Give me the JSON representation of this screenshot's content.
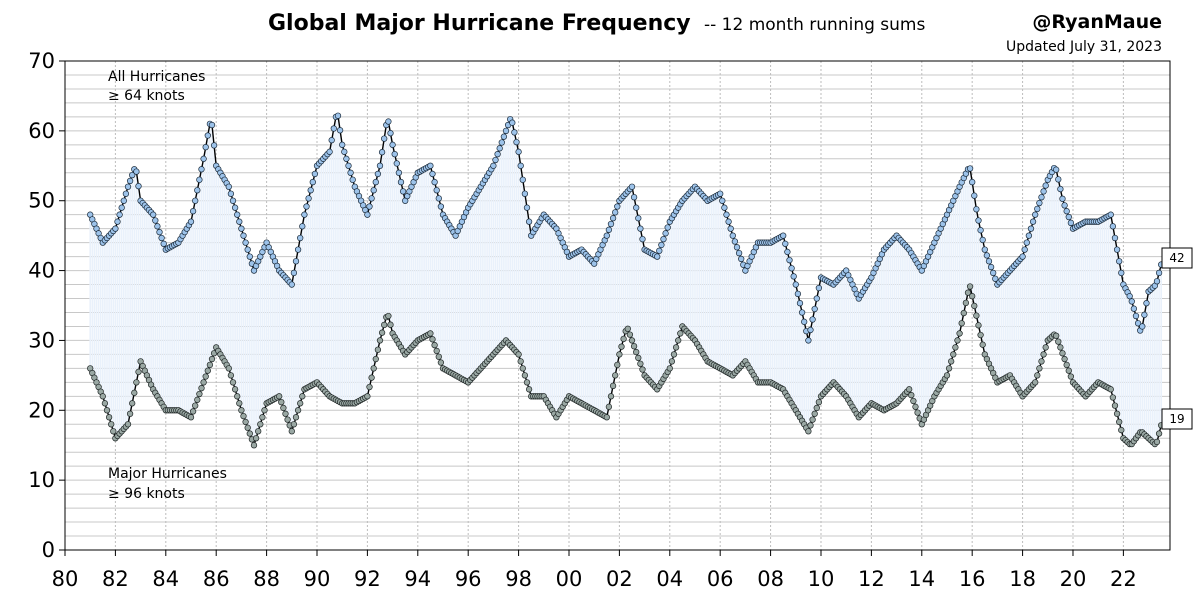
{
  "chart_data": {
    "type": "line",
    "title": "Global Major Hurricane Frequency",
    "subtitle": "-- 12 month running sums",
    "credit": "@RyanMaue",
    "updated": "Updated July 31, 2023",
    "xlim": [
      1980,
      2023.85
    ],
    "ylim": [
      0,
      70
    ],
    "y_ticks": [
      "0",
      "10",
      "20",
      "30",
      "40",
      "50",
      "60",
      "70"
    ],
    "x_tick_labels": [
      "80",
      "82",
      "84",
      "86",
      "88",
      "90",
      "92",
      "94",
      "96",
      "98",
      "00",
      "02",
      "04",
      "06",
      "08",
      "10",
      "12",
      "14",
      "16",
      "18",
      "20",
      "22"
    ],
    "grid": true,
    "annotations": {
      "all_line1": "All Hurricanes",
      "all_line2": "≥ 64 knots",
      "major_line1": "Major Hurricanes",
      "major_line2": "≥ 96 knots"
    },
    "end_labels": {
      "all": "42",
      "major": "19"
    },
    "series": [
      {
        "name": "All Hurricanes",
        "color": "#9dc3ea",
        "points": [
          [
            1981.0,
            48
          ],
          [
            1981.5,
            44
          ],
          [
            1982.0,
            46
          ],
          [
            1982.5,
            52
          ],
          [
            1982.8,
            55
          ],
          [
            1983.0,
            50
          ],
          [
            1983.5,
            48
          ],
          [
            1984.0,
            43
          ],
          [
            1984.5,
            44
          ],
          [
            1985.0,
            47
          ],
          [
            1985.5,
            56
          ],
          [
            1985.8,
            62
          ],
          [
            1986.0,
            55
          ],
          [
            1986.5,
            52
          ],
          [
            1987.0,
            46
          ],
          [
            1987.5,
            40
          ],
          [
            1988.0,
            44
          ],
          [
            1988.5,
            40
          ],
          [
            1989.0,
            38
          ],
          [
            1989.5,
            48
          ],
          [
            1990.0,
            55
          ],
          [
            1990.5,
            57
          ],
          [
            1990.8,
            63
          ],
          [
            1991.0,
            58
          ],
          [
            1991.5,
            52
          ],
          [
            1992.0,
            48
          ],
          [
            1992.5,
            55
          ],
          [
            1992.8,
            62
          ],
          [
            1993.0,
            58
          ],
          [
            1993.5,
            50
          ],
          [
            1994.0,
            54
          ],
          [
            1994.5,
            55
          ],
          [
            1995.0,
            48
          ],
          [
            1995.5,
            45
          ],
          [
            1996.0,
            49
          ],
          [
            1996.5,
            52
          ],
          [
            1997.0,
            55
          ],
          [
            1997.5,
            60
          ],
          [
            1997.7,
            62
          ],
          [
            1998.0,
            57
          ],
          [
            1998.5,
            45
          ],
          [
            1999.0,
            48
          ],
          [
            1999.5,
            46
          ],
          [
            2000.0,
            42
          ],
          [
            2000.5,
            43
          ],
          [
            2001.0,
            41
          ],
          [
            2001.5,
            45
          ],
          [
            2002.0,
            50
          ],
          [
            2002.5,
            52
          ],
          [
            2003.0,
            43
          ],
          [
            2003.5,
            42
          ],
          [
            2004.0,
            47
          ],
          [
            2004.5,
            50
          ],
          [
            2005.0,
            52
          ],
          [
            2005.5,
            50
          ],
          [
            2006.0,
            51
          ],
          [
            2006.5,
            45
          ],
          [
            2007.0,
            40
          ],
          [
            2007.5,
            44
          ],
          [
            2008.0,
            44
          ],
          [
            2008.5,
            45
          ],
          [
            2009.0,
            38
          ],
          [
            2009.5,
            30
          ],
          [
            2010.0,
            39
          ],
          [
            2010.5,
            38
          ],
          [
            2011.0,
            40
          ],
          [
            2011.5,
            36
          ],
          [
            2012.0,
            39
          ],
          [
            2012.5,
            43
          ],
          [
            2013.0,
            45
          ],
          [
            2013.5,
            43
          ],
          [
            2014.0,
            40
          ],
          [
            2014.5,
            44
          ],
          [
            2015.0,
            48
          ],
          [
            2015.5,
            52
          ],
          [
            2015.9,
            55
          ],
          [
            2016.2,
            48
          ],
          [
            2016.5,
            43
          ],
          [
            2017.0,
            38
          ],
          [
            2017.5,
            40
          ],
          [
            2018.0,
            42
          ],
          [
            2018.5,
            48
          ],
          [
            2019.0,
            53
          ],
          [
            2019.3,
            55
          ],
          [
            2019.6,
            50
          ],
          [
            2020.0,
            46
          ],
          [
            2020.5,
            47
          ],
          [
            2021.0,
            47
          ],
          [
            2021.5,
            48
          ],
          [
            2022.0,
            38
          ],
          [
            2022.3,
            36
          ],
          [
            2022.7,
            31
          ],
          [
            2023.0,
            37
          ],
          [
            2023.3,
            38
          ],
          [
            2023.58,
            42
          ]
        ]
      },
      {
        "name": "Major Hurricanes",
        "color": "#9aa8a4",
        "points": [
          [
            1981.0,
            26
          ],
          [
            1981.5,
            22
          ],
          [
            1982.0,
            16
          ],
          [
            1982.5,
            18
          ],
          [
            1983.0,
            27
          ],
          [
            1983.5,
            23
          ],
          [
            1984.0,
            20
          ],
          [
            1984.5,
            20
          ],
          [
            1985.0,
            19
          ],
          [
            1985.5,
            24
          ],
          [
            1986.0,
            29
          ],
          [
            1986.5,
            26
          ],
          [
            1987.0,
            20
          ],
          [
            1987.5,
            15
          ],
          [
            1988.0,
            21
          ],
          [
            1988.5,
            22
          ],
          [
            1989.0,
            17
          ],
          [
            1989.5,
            23
          ],
          [
            1990.0,
            24
          ],
          [
            1990.5,
            22
          ],
          [
            1991.0,
            21
          ],
          [
            1991.5,
            21
          ],
          [
            1992.0,
            22
          ],
          [
            1992.5,
            30
          ],
          [
            1992.8,
            34
          ],
          [
            1993.0,
            31
          ],
          [
            1993.5,
            28
          ],
          [
            1994.0,
            30
          ],
          [
            1994.5,
            31
          ],
          [
            1995.0,
            26
          ],
          [
            1995.5,
            25
          ],
          [
            1996.0,
            24
          ],
          [
            1996.5,
            26
          ],
          [
            1997.0,
            28
          ],
          [
            1997.5,
            30
          ],
          [
            1998.0,
            28
          ],
          [
            1998.5,
            22
          ],
          [
            1999.0,
            22
          ],
          [
            1999.5,
            19
          ],
          [
            2000.0,
            22
          ],
          [
            2000.5,
            21
          ],
          [
            2001.0,
            20
          ],
          [
            2001.5,
            19
          ],
          [
            2002.0,
            28
          ],
          [
            2002.3,
            32
          ],
          [
            2002.7,
            28
          ],
          [
            2003.0,
            25
          ],
          [
            2003.5,
            23
          ],
          [
            2004.0,
            26
          ],
          [
            2004.5,
            32
          ],
          [
            2005.0,
            30
          ],
          [
            2005.5,
            27
          ],
          [
            2006.0,
            26
          ],
          [
            2006.5,
            25
          ],
          [
            2007.0,
            27
          ],
          [
            2007.5,
            24
          ],
          [
            2008.0,
            24
          ],
          [
            2008.5,
            23
          ],
          [
            2009.0,
            20
          ],
          [
            2009.5,
            17
          ],
          [
            2010.0,
            22
          ],
          [
            2010.5,
            24
          ],
          [
            2011.0,
            22
          ],
          [
            2011.5,
            19
          ],
          [
            2012.0,
            21
          ],
          [
            2012.5,
            20
          ],
          [
            2013.0,
            21
          ],
          [
            2013.5,
            23
          ],
          [
            2014.0,
            18
          ],
          [
            2014.5,
            22
          ],
          [
            2015.0,
            25
          ],
          [
            2015.5,
            31
          ],
          [
            2015.9,
            38
          ],
          [
            2016.2,
            33
          ],
          [
            2016.5,
            28
          ],
          [
            2017.0,
            24
          ],
          [
            2017.5,
            25
          ],
          [
            2018.0,
            22
          ],
          [
            2018.5,
            24
          ],
          [
            2019.0,
            30
          ],
          [
            2019.3,
            31
          ],
          [
            2019.6,
            28
          ],
          [
            2020.0,
            24
          ],
          [
            2020.5,
            22
          ],
          [
            2021.0,
            24
          ],
          [
            2021.5,
            23
          ],
          [
            2022.0,
            16
          ],
          [
            2022.3,
            15
          ],
          [
            2022.7,
            17
          ],
          [
            2023.0,
            16
          ],
          [
            2023.3,
            15
          ],
          [
            2023.58,
            19
          ]
        ]
      }
    ]
  }
}
